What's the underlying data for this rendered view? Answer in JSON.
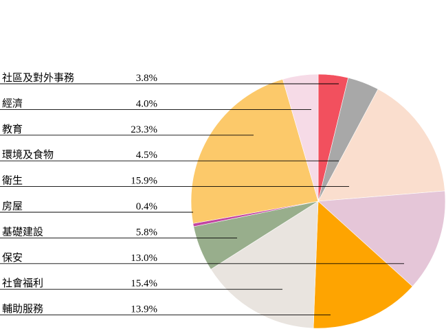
{
  "chart_data": {
    "type": "pie",
    "title": "",
    "unit": "%",
    "slices": [
      {
        "label": "社區及對外事務",
        "value": 3.8,
        "value_text": "3.8%",
        "color": "#f2505e"
      },
      {
        "label": "經濟",
        "value": 4.0,
        "value_text": "4.0%",
        "color": "#a8a8a8"
      },
      {
        "label": "教育",
        "value": 23.3,
        "value_text": "23.3%",
        "color": "#fcc96a"
      },
      {
        "label": "環境及食物",
        "value": 4.5,
        "value_text": "4.5%",
        "color": "#f6dbe7"
      },
      {
        "label": "衛生",
        "value": 15.9,
        "value_text": "15.9%",
        "color": "#fadece"
      },
      {
        "label": "房屋",
        "value": 0.4,
        "value_text": "0.4%",
        "color": "#c244a2"
      },
      {
        "label": "基礎建設",
        "value": 5.8,
        "value_text": "5.8%",
        "color": "#98ae8c"
      },
      {
        "label": "保安",
        "value": 13.0,
        "value_text": "13.0%",
        "color": "#e5c6d8"
      },
      {
        "label": "社會福利",
        "value": 15.4,
        "value_text": "15.4%",
        "color": "#e9e4df"
      },
      {
        "label": "輔助服務",
        "value": 13.9,
        "value_text": "13.9%",
        "color": "#fea401"
      }
    ],
    "pie_order": [
      "社區及對外事務",
      "經濟",
      "衛生",
      "保安",
      "輔助服務",
      "社會福利",
      "基礎建設",
      "房屋",
      "教育",
      "環境及食物"
    ]
  }
}
